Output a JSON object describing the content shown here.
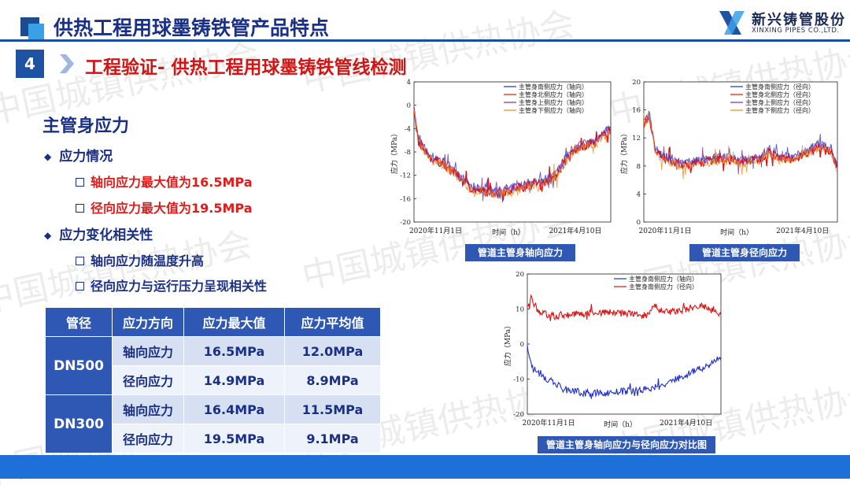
{
  "header": {
    "title": "供热工程用球墨铸铁管产品特点",
    "logo_cn": "新兴铸管股份",
    "logo_en": "XINXING PIPES CO.,LTD."
  },
  "section": {
    "number": "4",
    "title": "工程验证- 供热工程用球墨铸铁管线检测"
  },
  "content": {
    "heading": "主管身应力",
    "bullet1": "应力情况",
    "bullet1_items": [
      "轴向应力最大值为16.5MPa",
      "径向应力最大值为19.5MPa"
    ],
    "bullet2": "应力变化相关性",
    "bullet2_items": [
      "轴向应力随温度升高",
      "径向应力与运行压力呈现相关性"
    ]
  },
  "table": {
    "headers": [
      "管径",
      "应力方向",
      "应力最大值",
      "应力平均值"
    ],
    "groups": [
      {
        "dn": "DN500",
        "rows": [
          [
            "轴向应力",
            "16.5MPa",
            "12.0MPa"
          ],
          [
            "径向应力",
            "14.9MPa",
            "8.9MPa"
          ]
        ]
      },
      {
        "dn": "DN300",
        "rows": [
          [
            "轴向应力",
            "16.4MPa",
            "11.5MPa"
          ],
          [
            "径向应力",
            "19.5MPa",
            "9.1MPa"
          ]
        ]
      }
    ]
  },
  "watermark": "中国城镇供热协会",
  "chart_data": [
    {
      "type": "line",
      "caption": "管道主管身轴向应力",
      "ylabel": "应力（MPa）",
      "xlabel": "时间（h）",
      "x_ticks": [
        "2020年11月1日",
        "2021年4月10日"
      ],
      "ylim": [
        -20,
        4
      ],
      "y_ticks": [
        4,
        0,
        -4,
        -8,
        -12,
        -16,
        -20
      ],
      "legend_position": "top-right",
      "series": [
        {
          "name": "主管身南侧应力（轴向）",
          "color": "#1f2fd0"
        },
        {
          "name": "主管身北侧应力（轴向）",
          "color": "#e01010"
        },
        {
          "name": "主管身上侧应力（轴向）",
          "color": "#8a2a8a"
        },
        {
          "name": "主管身下侧应力（轴向）",
          "color": "#f08a20"
        }
      ],
      "profile": [
        [
          0,
          -1
        ],
        [
          0.02,
          -6
        ],
        [
          0.08,
          -9
        ],
        [
          0.15,
          -10
        ],
        [
          0.22,
          -12
        ],
        [
          0.3,
          -14.5
        ],
        [
          0.4,
          -15
        ],
        [
          0.5,
          -14.5
        ],
        [
          0.6,
          -13.5
        ],
        [
          0.68,
          -13
        ],
        [
          0.72,
          -12
        ],
        [
          0.78,
          -9
        ],
        [
          0.85,
          -7
        ],
        [
          0.92,
          -6.5
        ],
        [
          1,
          -4
        ]
      ]
    },
    {
      "type": "line",
      "caption": "管道主管身径向应力",
      "ylabel": "应力（MPa）",
      "xlabel": "时间（h）",
      "x_ticks": [
        "2020年11月1日",
        "2021年4月10日"
      ],
      "ylim": [
        0,
        20
      ],
      "y_ticks": [
        20,
        16,
        12,
        8,
        4,
        0
      ],
      "legend_position": "top-right",
      "series": [
        {
          "name": "主管身南侧应力（径向）",
          "color": "#1f2fd0"
        },
        {
          "name": "主管身北侧应力（径向）",
          "color": "#e01010"
        },
        {
          "name": "主管身上侧应力（径向）",
          "color": "#8a2a8a"
        },
        {
          "name": "主管身下侧应力（径向）",
          "color": "#f08a20"
        }
      ],
      "profile": [
        [
          0,
          14
        ],
        [
          0.03,
          15
        ],
        [
          0.06,
          10
        ],
        [
          0.12,
          9
        ],
        [
          0.2,
          8
        ],
        [
          0.3,
          8.5
        ],
        [
          0.4,
          9
        ],
        [
          0.5,
          8.5
        ],
        [
          0.6,
          9
        ],
        [
          0.65,
          10
        ],
        [
          0.7,
          9
        ],
        [
          0.78,
          9
        ],
        [
          0.85,
          10
        ],
        [
          0.92,
          11
        ],
        [
          0.97,
          10
        ],
        [
          1,
          7.5
        ]
      ]
    },
    {
      "type": "line",
      "caption": "管道主管身轴向应力与径向应力对比图",
      "ylabel": "应力（MPa）",
      "xlabel": "时间（h）",
      "x_ticks": [
        "2020年11月1日",
        "2021年4月10日"
      ],
      "ylim": [
        -20,
        20
      ],
      "y_ticks": [
        20,
        10,
        0,
        -10,
        -20
      ],
      "legend_position": "top-right",
      "series": [
        {
          "name": "主管身南侧应力（轴向）",
          "color": "#1f2fd0",
          "profile": [
            [
              0,
              -1
            ],
            [
              0.03,
              -7
            ],
            [
              0.1,
              -10
            ],
            [
              0.2,
              -13
            ],
            [
              0.3,
              -14
            ],
            [
              0.4,
              -14
            ],
            [
              0.5,
              -13.5
            ],
            [
              0.6,
              -13
            ],
            [
              0.7,
              -12
            ],
            [
              0.8,
              -9
            ],
            [
              0.9,
              -7
            ],
            [
              1,
              -4
            ]
          ]
        },
        {
          "name": "主管身南侧应力（径向）",
          "color": "#e01010",
          "profile": [
            [
              0,
              10
            ],
            [
              0.02,
              13
            ],
            [
              0.06,
              9
            ],
            [
              0.15,
              8
            ],
            [
              0.25,
              8.5
            ],
            [
              0.35,
              9
            ],
            [
              0.45,
              9
            ],
            [
              0.55,
              8.5
            ],
            [
              0.62,
              8
            ],
            [
              0.66,
              11
            ],
            [
              0.7,
              9
            ],
            [
              0.8,
              9.5
            ],
            [
              0.9,
              11
            ],
            [
              1,
              8
            ]
          ]
        }
      ]
    }
  ]
}
